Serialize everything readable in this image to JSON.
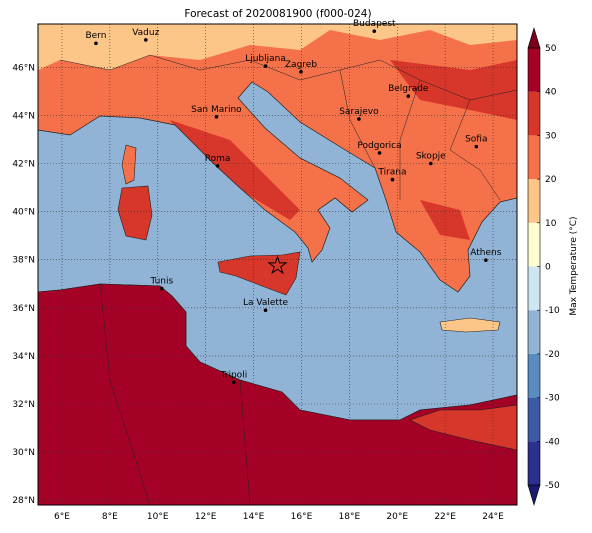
{
  "chart_data": {
    "type": "map",
    "title": "Forecast of 2020081900 (f000-024)",
    "xlim": [
      5,
      25
    ],
    "ylim": [
      27.8,
      47.8
    ],
    "xticks": [
      {
        "value": 6,
        "label": "6°E"
      },
      {
        "value": 8,
        "label": "8°E"
      },
      {
        "value": 10,
        "label": "10°E"
      },
      {
        "value": 12,
        "label": "12°E"
      },
      {
        "value": 14,
        "label": "14°E"
      },
      {
        "value": 16,
        "label": "16°E"
      },
      {
        "value": 18,
        "label": "18°E"
      },
      {
        "value": 20,
        "label": "20°E"
      },
      {
        "value": 22,
        "label": "22°E"
      },
      {
        "value": 24,
        "label": "24°E"
      }
    ],
    "yticks": [
      {
        "value": 28,
        "label": "28°N"
      },
      {
        "value": 30,
        "label": "30°N"
      },
      {
        "value": 32,
        "label": "32°N"
      },
      {
        "value": 34,
        "label": "34°N"
      },
      {
        "value": 36,
        "label": "36°N"
      },
      {
        "value": 38,
        "label": "38°N"
      },
      {
        "value": 40,
        "label": "40°N"
      },
      {
        "value": 42,
        "label": "42°N"
      },
      {
        "value": 44,
        "label": "44°N"
      },
      {
        "value": 46,
        "label": "46°N"
      }
    ],
    "grid": true,
    "cities": [
      {
        "name": "Bern",
        "lon": 7.42,
        "lat": 47.0
      },
      {
        "name": "Vaduz",
        "lon": 9.5,
        "lat": 47.14
      },
      {
        "name": "Budapest",
        "lon": 19.04,
        "lat": 47.5
      },
      {
        "name": "Ljubljana",
        "lon": 14.5,
        "lat": 46.05
      },
      {
        "name": "Zagreb",
        "lon": 15.98,
        "lat": 45.81
      },
      {
        "name": "Belgrade",
        "lon": 20.46,
        "lat": 44.8
      },
      {
        "name": "San Marino",
        "lon": 12.45,
        "lat": 43.94
      },
      {
        "name": "Sarajevo",
        "lon": 18.4,
        "lat": 43.85
      },
      {
        "name": "Sofia",
        "lon": 23.3,
        "lat": 42.7
      },
      {
        "name": "Podgorica",
        "lon": 19.26,
        "lat": 42.44
      },
      {
        "name": "Skopje",
        "lon": 21.4,
        "lat": 42.0
      },
      {
        "name": "Roma",
        "lon": 12.5,
        "lat": 41.9
      },
      {
        "name": "Tirana",
        "lon": 19.8,
        "lat": 41.33
      },
      {
        "name": "Athens",
        "lon": 23.7,
        "lat": 37.98
      },
      {
        "name": "Tunis",
        "lon": 10.17,
        "lat": 36.8
      },
      {
        "name": "La Valette",
        "lon": 14.5,
        "lat": 35.9
      },
      {
        "name": "Tripoli",
        "lon": 13.18,
        "lat": 32.9
      }
    ],
    "marker": {
      "lon": 15.0,
      "lat": 37.75
    },
    "colorbar": {
      "label": "Max Temperature (°C)",
      "ticks": [
        -50,
        -40,
        -30,
        -20,
        -10,
        0,
        10,
        20,
        30,
        40,
        50
      ],
      "colors": [
        "#2b2f8e",
        "#3b5aa6",
        "#5b8cc1",
        "#91b4d6",
        "#cde6f0",
        "#fefed0",
        "#fdc689",
        "#f4714a",
        "#d7362b",
        "#a50026"
      ]
    }
  }
}
